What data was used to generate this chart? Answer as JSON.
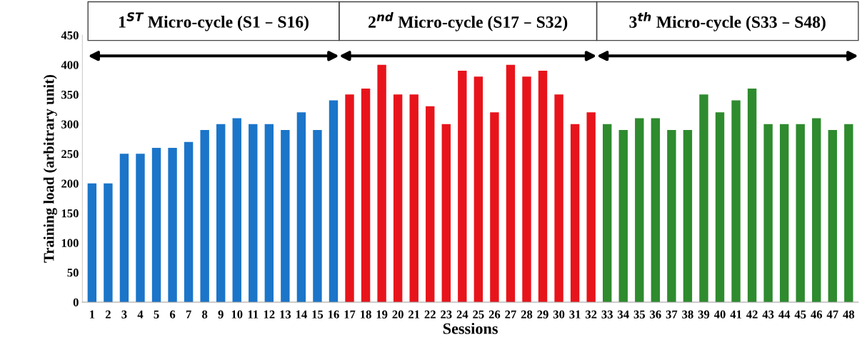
{
  "chart_data": {
    "type": "bar",
    "xlabel": "Sessions",
    "ylabel": "Training load (arbitrary unit)",
    "categories": [
      "1",
      "2",
      "3",
      "4",
      "5",
      "6",
      "7",
      "8",
      "9",
      "10",
      "11",
      "12",
      "13",
      "14",
      "15",
      "16",
      "17",
      "18",
      "19",
      "20",
      "21",
      "22",
      "23",
      "24",
      "25",
      "26",
      "27",
      "28",
      "29",
      "30",
      "31",
      "32",
      "33",
      "34",
      "35",
      "36",
      "37",
      "38",
      "39",
      "40",
      "41",
      "42",
      "43",
      "44",
      "45",
      "46",
      "47",
      "48"
    ],
    "values": [
      200,
      200,
      250,
      250,
      260,
      260,
      270,
      290,
      300,
      310,
      300,
      300,
      290,
      320,
      290,
      340,
      350,
      360,
      400,
      350,
      350,
      330,
      300,
      390,
      380,
      320,
      400,
      380,
      390,
      350,
      300,
      320,
      300,
      290,
      310,
      310,
      290,
      290,
      350,
      320,
      340,
      360,
      300,
      300,
      300,
      310,
      290,
      300
    ],
    "colors": [
      "#1b75c9",
      "#1b75c9",
      "#1b75c9",
      "#1b75c9",
      "#1b75c9",
      "#1b75c9",
      "#1b75c9",
      "#1b75c9",
      "#1b75c9",
      "#1b75c9",
      "#1b75c9",
      "#1b75c9",
      "#1b75c9",
      "#1b75c9",
      "#1b75c9",
      "#1b75c9",
      "#e8141b",
      "#e8141b",
      "#e8141b",
      "#e8141b",
      "#e8141b",
      "#e8141b",
      "#e8141b",
      "#e8141b",
      "#e8141b",
      "#e8141b",
      "#e8141b",
      "#e8141b",
      "#e8141b",
      "#e8141b",
      "#e8141b",
      "#e8141b",
      "#2e8b2e",
      "#2e8b2e",
      "#2e8b2e",
      "#2e8b2e",
      "#2e8b2e",
      "#2e8b2e",
      "#2e8b2e",
      "#2e8b2e",
      "#2e8b2e",
      "#2e8b2e",
      "#2e8b2e",
      "#2e8b2e",
      "#2e8b2e",
      "#2e8b2e",
      "#2e8b2e",
      "#2e8b2e"
    ],
    "ylim": [
      0,
      450
    ],
    "yticks": [
      0,
      50,
      100,
      150,
      200,
      250,
      300,
      350,
      400,
      450
    ],
    "grid": false,
    "annotations": [
      "1$^{ST}$ Micro-cycle (S1 – S16)",
      "2$^{nd}$ Micro-cycle (S17 – S32)",
      "3$^{th}$ Micro-cycle (S33 – S48)"
    ]
  }
}
